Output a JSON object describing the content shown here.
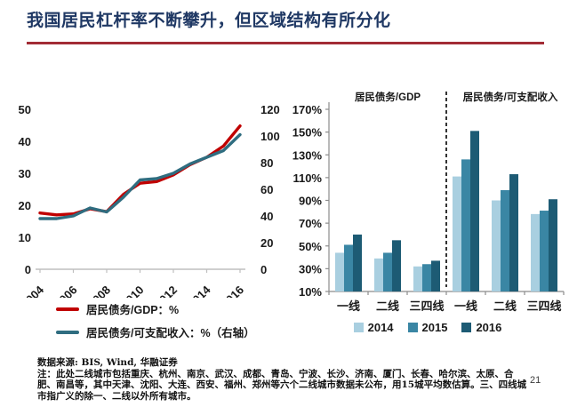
{
  "slide": {
    "title": "我国居民杠杆率不断攀升，但区域结构有所分化",
    "page_number": "21"
  },
  "colors": {
    "title_text": "#1F3864",
    "underline": "#A22C35",
    "axis_gray": "#BFBFBF",
    "bar_axis_gray": "#8C8C8C"
  },
  "footnote": {
    "source": "数据来源: BIS, Wind, 华融证券",
    "note": "注：此处二线城市包括重庆、杭州、南京、武汉、成都、青岛、宁波、长沙、济南、厦门、长春、哈尔滨、太原、合肥、南昌等，其中天津、沈阳、大连、西安、福州、郑州等六个二线城市数据未公布，用15城平均数估算。三、四线城市指广义的除一、二线以外所有城市。"
  },
  "chart_data": [
    {
      "type": "line",
      "title": "",
      "x": [
        2004,
        2005,
        2006,
        2007,
        2008,
        2009,
        2010,
        2011,
        2012,
        2013,
        2014,
        2015,
        2016
      ],
      "x_ticks": [
        2004,
        2006,
        2008,
        2010,
        2012,
        2014,
        2016
      ],
      "series": [
        {
          "name": "居民债务/GDP：%",
          "axis": "left",
          "color": "#C00000",
          "values": [
            17.6,
            17.0,
            17.3,
            18.9,
            18.0,
            23.4,
            26.9,
            27.4,
            29.5,
            32.7,
            35.0,
            38.5,
            44.8
          ]
        },
        {
          "name": "居民债务/可支配收入：%（右轴）",
          "axis": "right",
          "color": "#2F6D80",
          "values": [
            38,
            38,
            40,
            46,
            43,
            54,
            67,
            68,
            72,
            79,
            84,
            89,
            101
          ]
        }
      ],
      "left_axis": {
        "min": 0,
        "max": 50,
        "ticks": [
          0,
          10,
          20,
          30,
          40,
          50
        ]
      },
      "right_axis": {
        "min": 0,
        "max": 120,
        "ticks": [
          0,
          20,
          40,
          60,
          80,
          100,
          120
        ]
      },
      "grid": false,
      "legend_position": "bottom"
    },
    {
      "type": "bar",
      "title": "",
      "section_labels": [
        "居民债务/GDP",
        "居民债务/可支配收入"
      ],
      "categories": [
        "一线",
        "二线",
        "三四线",
        "一线",
        "二线",
        "三四线"
      ],
      "series": [
        {
          "name": "2014",
          "color": "#A9CFE0",
          "values": [
            44,
            39,
            32,
            111,
            90,
            78
          ]
        },
        {
          "name": "2015",
          "color": "#3A86A4",
          "values": [
            51,
            44,
            34,
            126,
            99,
            81
          ]
        },
        {
          "name": "2016",
          "color": "#1D5B74",
          "values": [
            60,
            55,
            37,
            151,
            113,
            91
          ]
        }
      ],
      "y_axis": {
        "min": 10,
        "max": 170,
        "ticks": [
          170,
          150,
          130,
          110,
          90,
          70,
          50,
          30,
          10
        ],
        "tick_suffix": "%"
      },
      "divider_after_category": 3,
      "grid": false,
      "legend_position": "bottom"
    }
  ]
}
